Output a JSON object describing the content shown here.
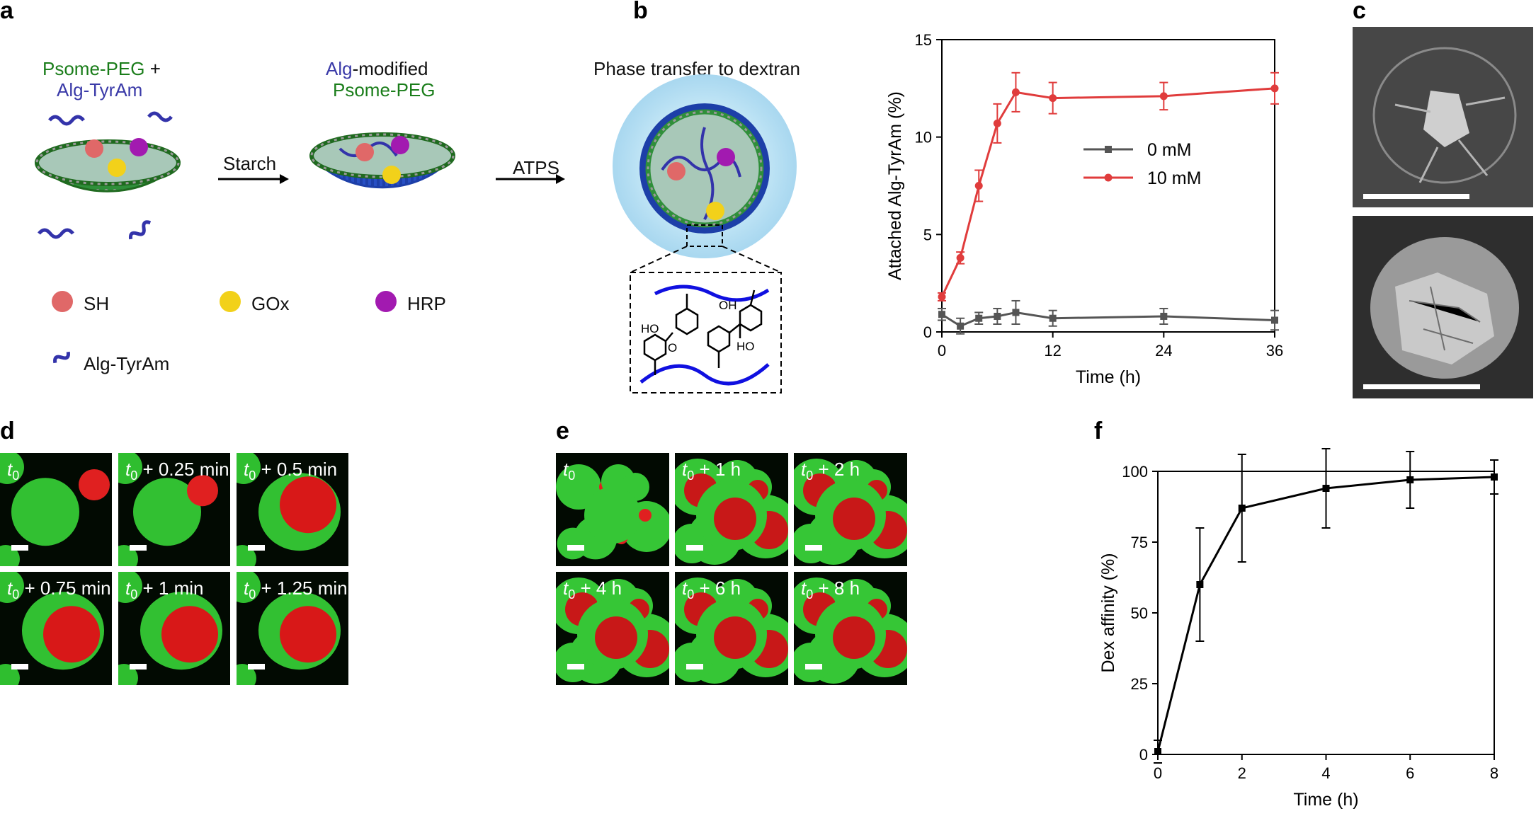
{
  "letters": {
    "a": "a",
    "b": "b",
    "c": "c",
    "d": "d",
    "e": "e",
    "f": "f"
  },
  "panel_a": {
    "psome_peg": "Psome-PEG",
    "plus": " +",
    "alg_tyram_top": "Alg-TyrAm",
    "alg_word": "Alg",
    "modified": "-modified",
    "psome_peg_2": "Psome-PEG",
    "phase_transfer": "Phase transfer to dextran",
    "starch": "Starch",
    "atps": "ATPS",
    "legend": {
      "sh": "SH",
      "gox": "GOx",
      "hrp": "HRP",
      "alg_tyram": "Alg-TyrAm"
    },
    "oh1": "OH",
    "ho1": "HO",
    "o": "O",
    "ho2": "HO",
    "colors": {
      "sh": "#e06868",
      "gox": "#f2d11a",
      "hrp": "#a21ab0",
      "alg": "#3333aa",
      "shell": "#1f7a1f",
      "blue_shell": "#1d3fa8",
      "glow": "#9fd3ee"
    }
  },
  "panel_d_tiles": [
    {
      "label_base": "t",
      "label_sub": "0",
      "label_rest": ""
    },
    {
      "label_base": "t",
      "label_sub": "0",
      "label_rest": " + 0.25 min"
    },
    {
      "label_base": "t",
      "label_sub": "0",
      "label_rest": " + 0.5 min"
    },
    {
      "label_base": "t",
      "label_sub": "0",
      "label_rest": " + 0.75 min"
    },
    {
      "label_base": "t",
      "label_sub": "0",
      "label_rest": " + 1 min"
    },
    {
      "label_base": "t",
      "label_sub": "0",
      "label_rest": " + 1.25 min"
    }
  ],
  "panel_e_tiles": [
    {
      "label_base": "t",
      "label_sub": "0",
      "label_rest": ""
    },
    {
      "label_base": "t",
      "label_sub": "0",
      "label_rest": " + 1 h"
    },
    {
      "label_base": "t",
      "label_sub": "0",
      "label_rest": " + 2 h"
    },
    {
      "label_base": "t",
      "label_sub": "0",
      "label_rest": " + 4 h"
    },
    {
      "label_base": "t",
      "label_sub": "0",
      "label_rest": " + 6 h"
    },
    {
      "label_base": "t",
      "label_sub": "0",
      "label_rest": " + 8 h"
    }
  ],
  "chart_data": [
    {
      "id": "b",
      "type": "line",
      "xlabel": "Time (h)",
      "ylabel": "Attached Alg-TyrAm (%)",
      "xlim": [
        0,
        36
      ],
      "ylim": [
        0,
        15
      ],
      "xticks": [
        0,
        12,
        24,
        36
      ],
      "yticks": [
        0,
        5,
        10,
        15
      ],
      "legend_position": "right-middle",
      "series": [
        {
          "name": "0 mM",
          "color": "#555555",
          "marker": "square",
          "x": [
            0,
            2,
            4,
            6,
            8,
            12,
            24,
            36
          ],
          "y": [
            0.9,
            0.3,
            0.7,
            0.8,
            1.0,
            0.7,
            0.8,
            0.6
          ],
          "err": [
            0.3,
            0.4,
            0.3,
            0.4,
            0.6,
            0.4,
            0.4,
            0.5
          ]
        },
        {
          "name": "10 mM",
          "color": "#e03c3c",
          "marker": "circle",
          "x": [
            0,
            2,
            4,
            6,
            8,
            12,
            24,
            36
          ],
          "y": [
            1.8,
            3.8,
            7.5,
            10.7,
            12.3,
            12.0,
            12.1,
            12.5
          ],
          "err": [
            0.2,
            0.3,
            0.8,
            1.0,
            1.0,
            0.8,
            0.7,
            0.8
          ]
        }
      ]
    },
    {
      "id": "f",
      "type": "line",
      "xlabel": "Time (h)",
      "ylabel": "Dex affinity (%)",
      "xlim": [
        0,
        8
      ],
      "ylim": [
        0,
        100
      ],
      "xticks": [
        0,
        2,
        4,
        6,
        8
      ],
      "yticks": [
        0,
        25,
        50,
        75,
        100
      ],
      "series": [
        {
          "name": "",
          "color": "#000000",
          "marker": "square",
          "x": [
            0,
            1,
            2,
            4,
            6,
            8
          ],
          "y": [
            1,
            60,
            87,
            94,
            97,
            98
          ],
          "err": [
            4,
            20,
            19,
            14,
            10,
            6
          ]
        }
      ]
    }
  ]
}
